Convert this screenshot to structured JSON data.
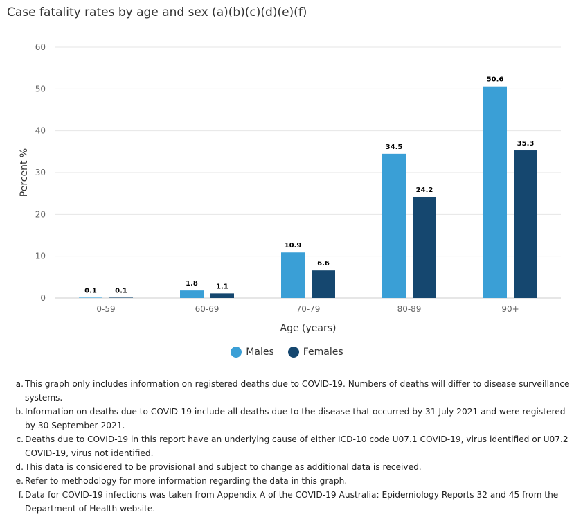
{
  "chart_data": {
    "type": "bar",
    "title": "Case fatality rates by age and sex (a)(b)(c)(d)(e)(f)",
    "xlabel": "Age (years)",
    "ylabel": "Percent %",
    "ylim": [
      0,
      60
    ],
    "yticks": [
      "0",
      "10",
      "20",
      "30",
      "40",
      "50",
      "60"
    ],
    "grid": true,
    "legend_position": "bottom-center",
    "categories": [
      "0-59",
      "60-69",
      "70-79",
      "80-89",
      "90+"
    ],
    "series": [
      {
        "name": "Males",
        "color": "#3a9fd6",
        "values": [
          0.1,
          1.8,
          10.9,
          34.5,
          50.6
        ],
        "labels": [
          "0.1",
          "1.8",
          "10.9",
          "34.5",
          "50.6"
        ]
      },
      {
        "name": "Females",
        "color": "#15476f",
        "values": [
          0.1,
          1.1,
          6.6,
          24.2,
          35.3
        ],
        "labels": [
          "0.1",
          "1.1",
          "6.6",
          "24.2",
          "35.3"
        ]
      }
    ]
  },
  "notes": [
    {
      "marker": "a.",
      "text": "This graph only includes information on registered deaths due to COVID-19. Numbers of deaths will differ to disease surveillance systems."
    },
    {
      "marker": "b.",
      "text": "Information on deaths due to COVID-19 include all deaths due to the disease that occurred by 31 July 2021 and were registered by 30 September 2021."
    },
    {
      "marker": "c.",
      "text": "Deaths due to COVID-19 in this report have an underlying cause of either ICD-10 code U07.1 COVID-19, virus identified or U07.2 COVID-19, virus not identified."
    },
    {
      "marker": "d.",
      "text": "This data is considered to be provisional and subject to change as additional data is received."
    },
    {
      "marker": "e.",
      "text": "Refer to methodology for more information regarding the data in this graph."
    },
    {
      "marker": "f.",
      "text": "Data for COVID-19 infections was taken from Appendix A of the COVID-19 Australia: Epidemiology Reports 32 and 45 from the Department of Health website."
    }
  ]
}
